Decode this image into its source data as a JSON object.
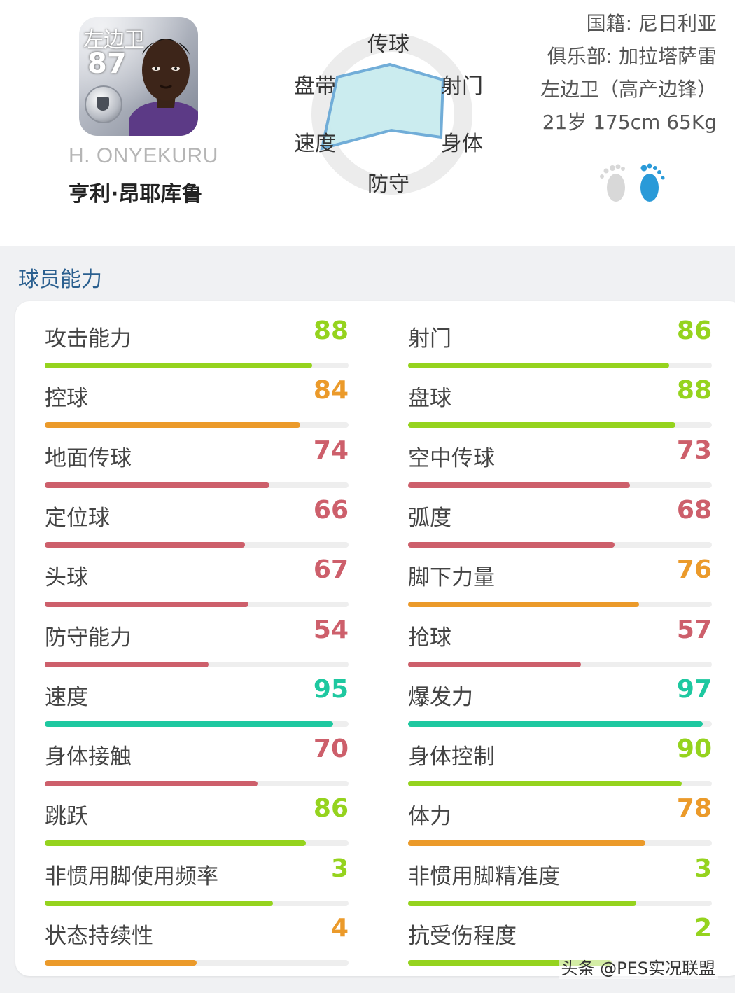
{
  "player": {
    "position": "左边卫",
    "overall": "87",
    "name_en": "H. ONYEKURU",
    "name_cn": "亨利·昂耶库鲁"
  },
  "radar": {
    "labels": [
      "传球",
      "射门",
      "身体",
      "防守",
      "速度",
      "盘带"
    ]
  },
  "info": {
    "nationality": "国籍: 尼日利亚",
    "club": "俱乐部: 加拉塔萨雷",
    "role": "左边卫（高产边锋）",
    "physical": "21岁 175cm 65Kg"
  },
  "section_title": "球员能力",
  "colors": {
    "green": "#95d31e",
    "orange": "#eb9a2a",
    "red": "#cd5f6b",
    "teal": "#1ec8a0",
    "section_title": "#2a5f8f"
  },
  "stats": {
    "left": [
      {
        "label": "攻击能力",
        "value": "88",
        "color": "#95d31e",
        "fill": 0.88
      },
      {
        "label": "控球",
        "value": "84",
        "color": "#eb9a2a",
        "fill": 0.84
      },
      {
        "label": "地面传球",
        "value": "74",
        "color": "#cd5f6b",
        "fill": 0.74
      },
      {
        "label": "定位球",
        "value": "66",
        "color": "#cd5f6b",
        "fill": 0.66
      },
      {
        "label": "头球",
        "value": "67",
        "color": "#cd5f6b",
        "fill": 0.67
      },
      {
        "label": "防守能力",
        "value": "54",
        "color": "#cd5f6b",
        "fill": 0.54
      },
      {
        "label": "速度",
        "value": "95",
        "color": "#1ec8a0",
        "fill": 0.95
      },
      {
        "label": "身体接触",
        "value": "70",
        "color": "#cd5f6b",
        "fill": 0.7
      },
      {
        "label": "跳跃",
        "value": "86",
        "color": "#95d31e",
        "fill": 0.86
      },
      {
        "label": "非惯用脚使用频率",
        "value": "3",
        "color": "#95d31e",
        "fill": 0.75
      },
      {
        "label": "状态持续性",
        "value": "4",
        "color": "#eb9a2a",
        "fill": 0.5
      }
    ],
    "right": [
      {
        "label": "射门",
        "value": "86",
        "color": "#95d31e",
        "fill": 0.86
      },
      {
        "label": "盘球",
        "value": "88",
        "color": "#95d31e",
        "fill": 0.88
      },
      {
        "label": "空中传球",
        "value": "73",
        "color": "#cd5f6b",
        "fill": 0.73
      },
      {
        "label": "弧度",
        "value": "68",
        "color": "#cd5f6b",
        "fill": 0.68
      },
      {
        "label": "脚下力量",
        "value": "76",
        "color": "#eb9a2a",
        "fill": 0.76
      },
      {
        "label": "抢球",
        "value": "57",
        "color": "#cd5f6b",
        "fill": 0.57
      },
      {
        "label": "爆发力",
        "value": "97",
        "color": "#1ec8a0",
        "fill": 0.97
      },
      {
        "label": "身体控制",
        "value": "90",
        "color": "#95d31e",
        "fill": 0.9
      },
      {
        "label": "体力",
        "value": "78",
        "color": "#eb9a2a",
        "fill": 0.78
      },
      {
        "label": "非惯用脚精准度",
        "value": "3",
        "color": "#95d31e",
        "fill": 0.75
      },
      {
        "label": "抗受伤程度",
        "value": "2",
        "color": "#95d31e",
        "fill": 0.67
      }
    ]
  },
  "watermark": "头条 @PES实况联盟"
}
